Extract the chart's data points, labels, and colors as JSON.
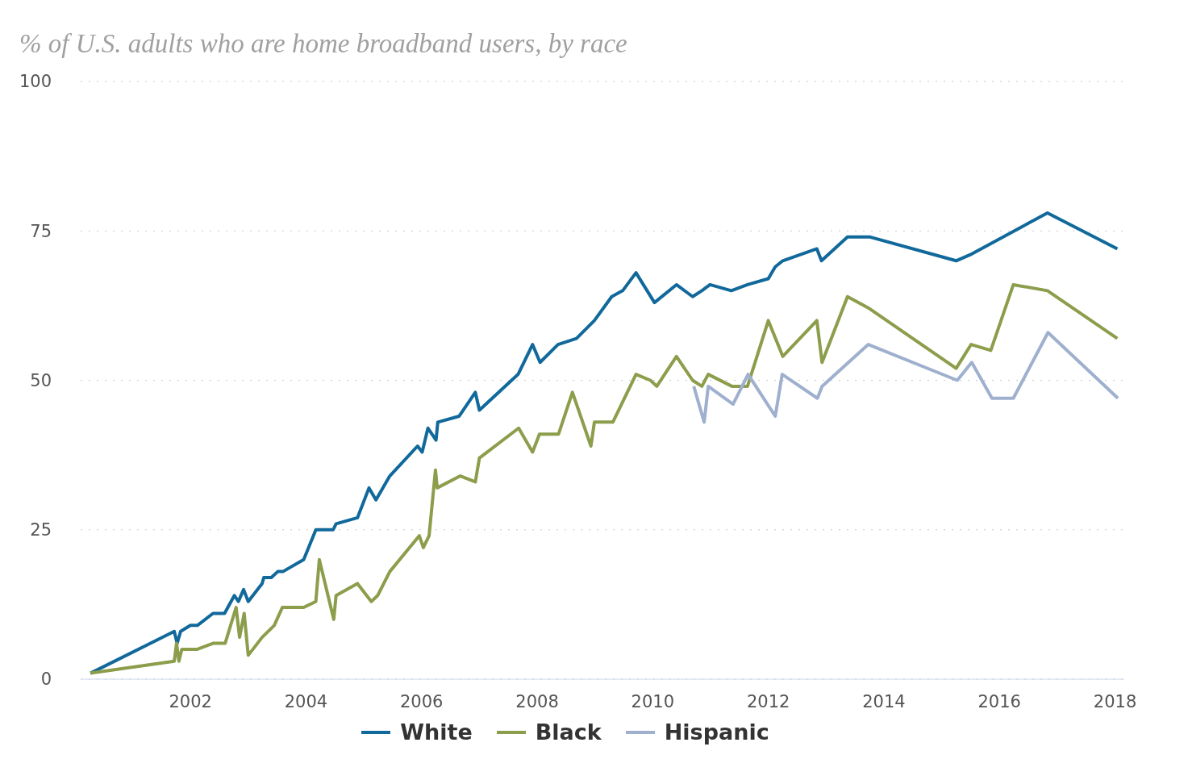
{
  "chart_data": {
    "type": "line",
    "title": "% of U.S. adults who are home broadband users, by race",
    "xlim": [
      2000.1,
      2018.16
    ],
    "xticks": [
      2002,
      2004,
      2006,
      2008,
      2010,
      2012,
      2014,
      2016,
      2018
    ],
    "ylim": [
      0,
      100
    ],
    "yticks": [
      0,
      25,
      50,
      75,
      100
    ],
    "grid": "y",
    "legend": "bottom",
    "marker": "none",
    "line_style": "solid",
    "series": [
      {
        "name": "White",
        "color": "#11699b",
        "x": [
          2000.27,
          2001.72,
          2001.77,
          2001.83,
          2002.0,
          2002.12,
          2002.39,
          2002.59,
          2002.76,
          2002.83,
          2002.92,
          2003.0,
          2003.24,
          2003.27,
          2003.4,
          2003.51,
          2003.6,
          2003.96,
          2004.17,
          2004.47,
          2004.52,
          2004.89,
          2005.09,
          2005.21,
          2005.45,
          2005.93,
          2006.01,
          2006.11,
          2006.25,
          2006.28,
          2006.65,
          2006.93,
          2007.0,
          2007.67,
          2007.92,
          2008.05,
          2008.36,
          2008.68,
          2008.99,
          2009.29,
          2009.48,
          2009.71,
          2010.03,
          2010.41,
          2010.69,
          2010.85,
          2010.99,
          2011.36,
          2011.64,
          2012.0,
          2012.12,
          2012.25,
          2012.84,
          2012.92,
          2013.37,
          2013.75,
          2015.25,
          2015.49,
          2016.83,
          2018.04
        ],
        "values": [
          1,
          8,
          6,
          8,
          9,
          9,
          11,
          11,
          14,
          13,
          15,
          13,
          16,
          17,
          17,
          18,
          18,
          20,
          25,
          25,
          26,
          27,
          32,
          30,
          34,
          39,
          38,
          42,
          40,
          43,
          44,
          48,
          45,
          51,
          56,
          53,
          56,
          57,
          60,
          64,
          65,
          68,
          63,
          66,
          64,
          65,
          66,
          65,
          66,
          67,
          69,
          70,
          72,
          70,
          74,
          74,
          70,
          71,
          78,
          72
        ]
      },
      {
        "name": "Black",
        "color": "#8c9d4b",
        "x": [
          2000.27,
          2001.72,
          2001.76,
          2001.8,
          2001.85,
          2002.12,
          2002.39,
          2002.6,
          2002.79,
          2002.85,
          2002.93,
          2003.0,
          2003.24,
          2003.45,
          2003.59,
          2003.96,
          2004.17,
          2004.23,
          2004.48,
          2004.52,
          2004.89,
          2005.13,
          2005.24,
          2005.45,
          2005.96,
          2006.03,
          2006.13,
          2006.24,
          2006.27,
          2006.67,
          2006.93,
          2007.0,
          2007.68,
          2007.92,
          2008.04,
          2008.37,
          2008.61,
          2008.93,
          2008.99,
          2009.31,
          2009.71,
          2009.96,
          2010.07,
          2010.41,
          2010.69,
          2010.85,
          2010.96,
          2011.37,
          2011.64,
          2012.0,
          2012.25,
          2012.84,
          2012.93,
          2013.37,
          2013.75,
          2015.25,
          2015.51,
          2015.85,
          2016.24,
          2016.83,
          2018.04
        ],
        "values": [
          1,
          3,
          6,
          3,
          5,
          5,
          6,
          6,
          12,
          7,
          11,
          4,
          7,
          9,
          12,
          12,
          13,
          20,
          10,
          14,
          16,
          13,
          14,
          18,
          24,
          22,
          24,
          35,
          32,
          34,
          33,
          37,
          42,
          38,
          41,
          41,
          48,
          39,
          43,
          43,
          51,
          50,
          49,
          54,
          50,
          49,
          51,
          49,
          49,
          60,
          54,
          60,
          53,
          64,
          62,
          52,
          56,
          55,
          66,
          65,
          57
        ]
      },
      {
        "name": "Hispanic",
        "color": "#9fb0cf",
        "x": [
          2010.71,
          2010.89,
          2010.96,
          2011.39,
          2011.65,
          2012.12,
          2012.24,
          2012.85,
          2012.93,
          2013.73,
          2015.27,
          2015.52,
          2015.87,
          2016.24,
          2016.84,
          2018.05
        ],
        "values": [
          49,
          43,
          49,
          46,
          51,
          44,
          51,
          47,
          49,
          56,
          50,
          53,
          47,
          47,
          58,
          47
        ]
      }
    ]
  }
}
